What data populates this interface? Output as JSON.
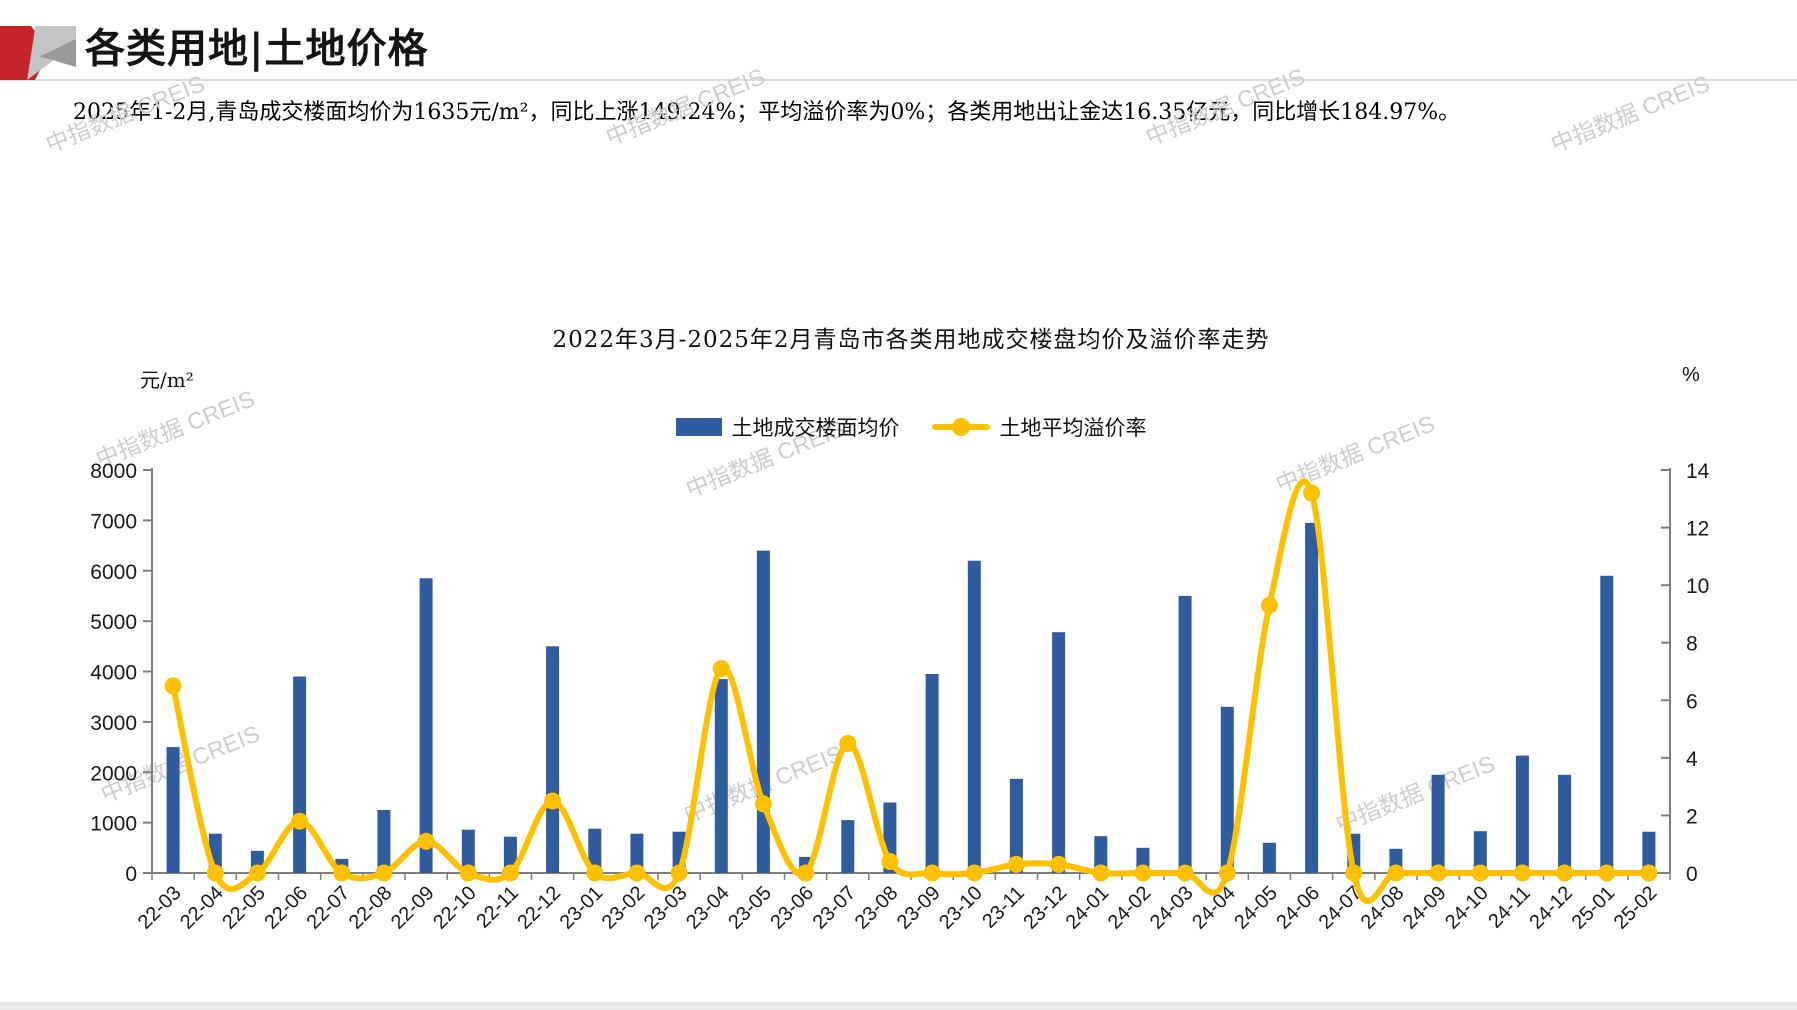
{
  "header": {
    "title": "各类用地|土地价格"
  },
  "summary": "2025年1-2月,青岛成交楼面均价为1635元/m²，同比上涨149.24%；平均溢价率为0%；各类用地出让金达16.35亿元，同比增长184.97%。",
  "watermark": "中指数据 CREIS",
  "chart_data": {
    "type": "bar+line",
    "title": "2022年3月-2025年2月青岛市各类用地成交楼盘均价及溢价率走势",
    "categories": [
      "22-03",
      "22-04",
      "22-05",
      "22-06",
      "22-07",
      "22-08",
      "22-09",
      "22-10",
      "22-11",
      "22-12",
      "23-01",
      "23-02",
      "23-03",
      "23-04",
      "23-05",
      "23-06",
      "23-07",
      "23-08",
      "23-09",
      "23-10",
      "23-11",
      "23-12",
      "24-01",
      "24-02",
      "24-03",
      "24-04",
      "24-05",
      "24-06",
      "24-07",
      "24-08",
      "24-09",
      "24-10",
      "24-11",
      "24-12",
      "25-01",
      "25-02"
    ],
    "series": [
      {
        "name": "土地成交楼面均价",
        "type": "bar",
        "axis": "left",
        "color": "#2E5C9E",
        "values": [
          2500,
          780,
          440,
          3900,
          280,
          1250,
          5850,
          860,
          720,
          4500,
          880,
          780,
          820,
          3850,
          6400,
          320,
          1050,
          1400,
          3950,
          6200,
          1870,
          4780,
          730,
          500,
          5500,
          3300,
          600,
          6950,
          780,
          480,
          1950,
          830,
          2330,
          1950,
          5900,
          820
        ]
      },
      {
        "name": "土地平均溢价率",
        "type": "line",
        "axis": "right",
        "color": "#FFC000",
        "values": [
          6.5,
          0,
          0,
          1.8,
          0,
          0,
          1.1,
          0,
          0,
          2.5,
          0,
          0,
          0,
          7.1,
          2.4,
          0,
          4.5,
          0.4,
          0,
          0,
          0.3,
          0.3,
          0,
          0,
          0,
          0,
          9.3,
          13.2,
          0,
          0,
          0,
          0,
          0,
          0,
          0,
          0
        ]
      }
    ],
    "left_axis": {
      "unit": "元/m²",
      "min": 0,
      "max": 8000,
      "step": 1000
    },
    "right_axis": {
      "unit": "%",
      "min": 0,
      "max": 14,
      "step": 2
    },
    "grid": false,
    "legend_position": "top-center"
  },
  "colors": {
    "bar": "#2E5C9E",
    "line": "#FFC000",
    "axis": "#7f7f7f",
    "watermark": "#cdcdcd",
    "logo_red": "#C8242B",
    "footer_bar": "#e9e9e9"
  }
}
